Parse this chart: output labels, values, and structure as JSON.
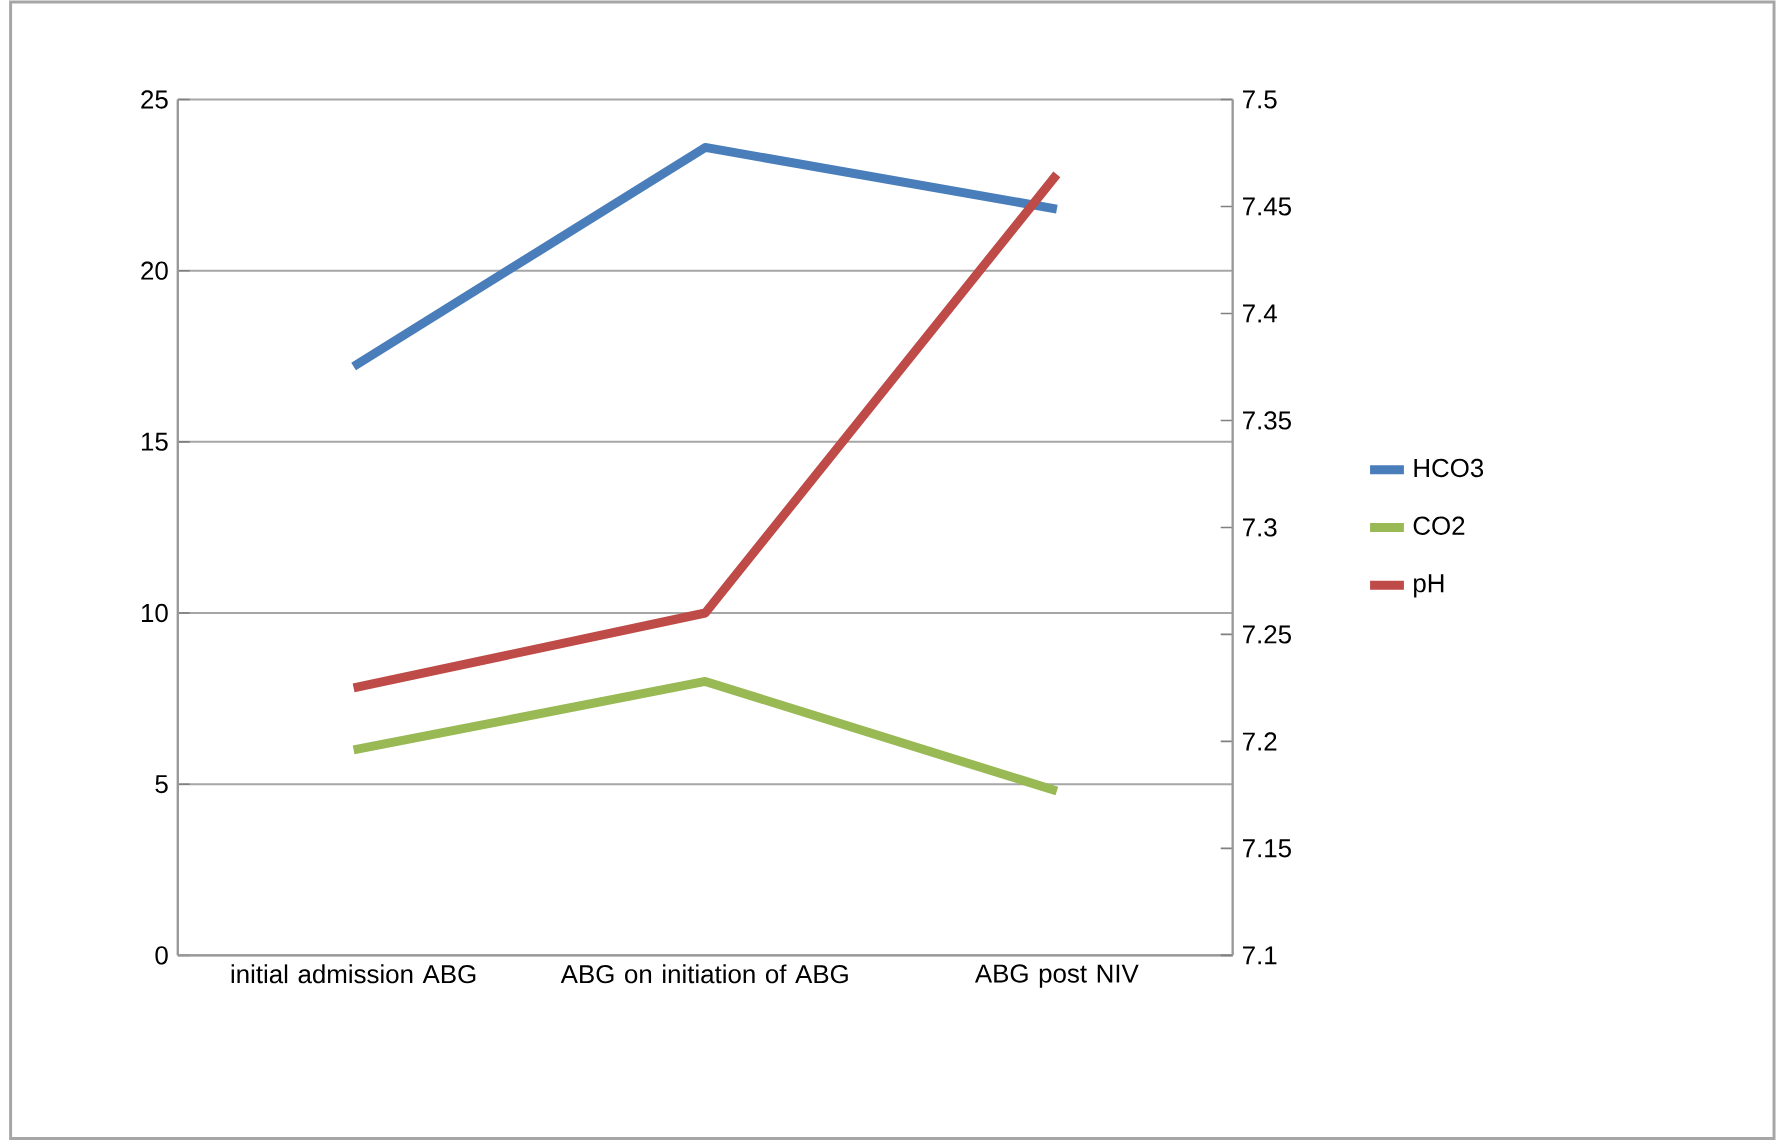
{
  "chart_data": {
    "type": "line",
    "categories": [
      "initial admission ABG",
      "ABG on initiation of ABG",
      "ABG post NIV"
    ],
    "series": [
      {
        "name": "HCO3",
        "color": "#4a7ebb",
        "values": [
          17.2,
          23.6,
          21.8
        ]
      },
      {
        "name": "CO2",
        "color": "#98b954",
        "values": [
          6.0,
          8.0,
          4.8
        ]
      },
      {
        "name": "pH",
        "color": "#be4b48",
        "values": [
          7.225,
          7.26,
          7.465
        ],
        "axis": "y2"
      }
    ],
    "ylim": [
      0,
      25
    ],
    "yticks": [
      0,
      5,
      10,
      15,
      20,
      25
    ],
    "y2lim": [
      7.1,
      7.5
    ],
    "y2ticks": [
      7.1,
      7.15,
      7.2,
      7.25,
      7.3,
      7.35,
      7.4,
      7.45,
      7.5
    ],
    "grid": "y",
    "legend": "right",
    "marker": "none",
    "line_style": "solid"
  }
}
